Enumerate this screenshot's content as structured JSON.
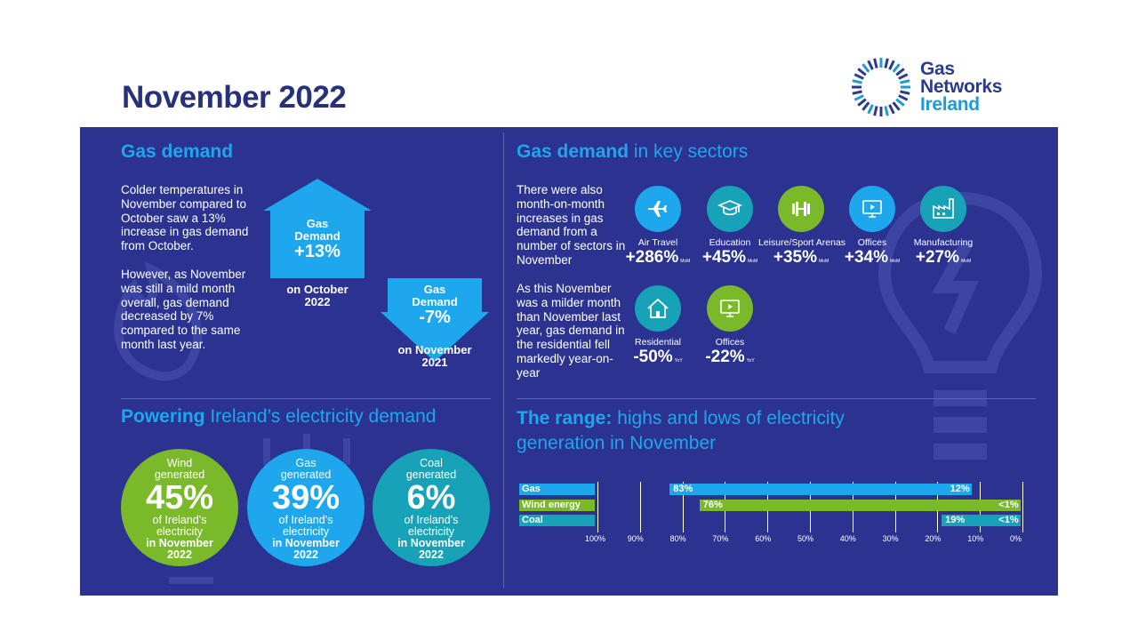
{
  "header": {
    "title": "November 2022",
    "logo": {
      "line1": "Gas",
      "line2": "Networks",
      "line3": "Ireland"
    }
  },
  "gas_demand": {
    "title": "Gas demand",
    "para1": "Colder temperatures in November compared to October saw a 13% increase in gas demand from October.",
    "para2": "However, as November was still a mild month overall, gas demand decreased by 7% compared to the same month last year.",
    "up_arrow": {
      "line1": "Gas",
      "line2": "Demand",
      "value": "+13%",
      "caption_line1": "on October",
      "caption_line2": "2022"
    },
    "down_arrow": {
      "line1": "Gas",
      "line2": "Demand",
      "value": "-7%",
      "caption_line1": "on November",
      "caption_line2": "2021"
    }
  },
  "key_sectors": {
    "title_bold": "Gas demand",
    "title_rest": " in key sectors",
    "para1": "There were also month-on-month increases in gas demand from a number of sectors in November",
    "para2": "As this November was a milder month than November last year, gas demand in the residential fell markedly year-on-year",
    "items": [
      {
        "name": "Air Travel",
        "value": "+286%",
        "unit": "MoM",
        "icon": "airplane-icon",
        "color": "#1ea7ec"
      },
      {
        "name": "Education",
        "value": "+45%",
        "unit": "MoM",
        "icon": "graduation-cap-icon",
        "color": "#17a2b8"
      },
      {
        "name": "Leisure/Sport Arenas",
        "value": "+35%",
        "unit": "MoM",
        "icon": "dumbbell-icon",
        "color": "#7ab929"
      },
      {
        "name": "Offices",
        "value": "+34%",
        "unit": "MoM",
        "icon": "monitor-icon",
        "color": "#1ea7ec"
      },
      {
        "name": "Manufacturing",
        "value": "+27%",
        "unit": "MoM",
        "icon": "factory-icon",
        "color": "#17a2b8"
      },
      {
        "name": "Residential",
        "value": "-50%",
        "unit": "YoY",
        "icon": "house-icon",
        "color": "#17a2b8"
      },
      {
        "name": "Offices",
        "value": "-22%",
        "unit": "YoY",
        "icon": "monitor-icon",
        "color": "#7ab929"
      }
    ]
  },
  "electricity": {
    "title_bold": "Powering",
    "title_rest": " Ireland’s electricity demand",
    "circles": [
      {
        "line1": "Wind",
        "line1b": "generated",
        "pct": "45%",
        "line2": "of Ireland’s",
        "line2b": "electricity",
        "line3": "in November",
        "line3b": "2022",
        "color": "#7ab929"
      },
      {
        "line1": "Gas",
        "line1b": "generated",
        "pct": "39%",
        "line2": "of Ireland’s",
        "line2b": "electricity",
        "line3": "in November",
        "line3b": "2022",
        "color": "#1ea7ec"
      },
      {
        "line1": "Coal",
        "line1b": "generated",
        "pct": "6%",
        "line2": "of Ireland’s",
        "line2b": "electricity",
        "line3": "in November",
        "line3b": "2022",
        "color": "#17a2b8"
      }
    ]
  },
  "range": {
    "title_bold": "The range:",
    "title_rest": " highs and lows of electricity",
    "title_line2": "generation in November",
    "rows": [
      {
        "label": "Gas",
        "high_label": "83%",
        "low_label": "12%",
        "high": 83,
        "low": 12,
        "color": "#1ea7ec"
      },
      {
        "label": "Wind energy",
        "high_label": "76%",
        "low_label": "<1%",
        "high": 76,
        "low": 0.5,
        "color": "#7ab929"
      },
      {
        "label": "Coal",
        "high_label": "19%",
        "low_label": "<1%",
        "high": 19,
        "low": 0.5,
        "color": "#17a2b8"
      }
    ],
    "ticks": [
      "100%",
      "90%",
      "80%",
      "70%",
      "60%",
      "50%",
      "40%",
      "30%",
      "20%",
      "10%",
      "0%"
    ]
  },
  "colors": {
    "panel": "#2b3290",
    "accent_blue": "#1ea7ec",
    "accent_green": "#7ab929",
    "accent_teal": "#17a2b8",
    "title_navy": "#27317a"
  }
}
